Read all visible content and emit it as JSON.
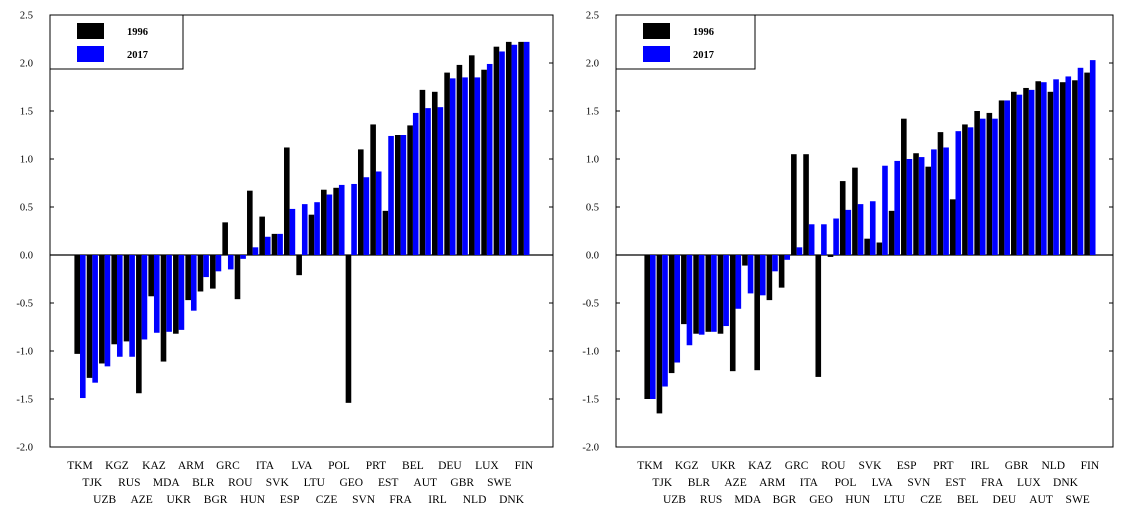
{
  "chart_data": [
    {
      "type": "bar",
      "ylim": [
        -2.0,
        2.5
      ],
      "yticks": [
        "2.5",
        "2.0",
        "1.5",
        "1.0",
        "0.5",
        "0.0",
        "-0.5",
        "-1.0",
        "-1.5",
        "-2.0"
      ],
      "ytick_values": [
        2.5,
        2.0,
        1.5,
        1.0,
        0.5,
        0.0,
        -0.5,
        -1.0,
        -1.5,
        -2.0
      ],
      "legend_position": "top-left",
      "categories": [
        "TKM",
        "TJK",
        "UZB",
        "KGZ",
        "RUS",
        "AZE",
        "KAZ",
        "MDA",
        "UKR",
        "ARM",
        "BLR",
        "BGR",
        "GRC",
        "ROU",
        "HUN",
        "ITA",
        "SVK",
        "ESP",
        "LVA",
        "LTU",
        "CZE",
        "POL",
        "GEO",
        "SVN",
        "PRT",
        "EST",
        "FRA",
        "BEL",
        "AUT",
        "IRL",
        "DEU",
        "GBR",
        "NLD",
        "LUX",
        "SWE",
        "DNK",
        "FIN"
      ],
      "series": [
        {
          "name": "1996",
          "color": "#000000",
          "values": [
            -1.03,
            -1.28,
            -1.13,
            -0.93,
            -0.9,
            -1.44,
            -0.43,
            -1.11,
            -0.82,
            -0.47,
            -0.38,
            -0.35,
            0.34,
            -0.46,
            0.67,
            0.4,
            0.22,
            1.12,
            -0.21,
            0.42,
            0.68,
            0.7,
            -1.54,
            1.1,
            1.36,
            0.46,
            1.25,
            1.35,
            1.72,
            1.7,
            1.9,
            1.98,
            2.08,
            1.93,
            2.17,
            2.22,
            2.22
          ]
        },
        {
          "name": "2017",
          "color": "#0000ff",
          "values": [
            -1.49,
            -1.33,
            -1.16,
            -1.06,
            -1.06,
            -0.88,
            -0.81,
            -0.8,
            -0.78,
            -0.58,
            -0.23,
            -0.17,
            -0.15,
            -0.04,
            0.08,
            0.19,
            0.22,
            0.48,
            0.53,
            0.55,
            0.63,
            0.73,
            0.74,
            0.81,
            0.87,
            1.24,
            1.25,
            1.48,
            1.53,
            1.54,
            1.84,
            1.85,
            1.85,
            1.99,
            2.12,
            2.19,
            2.22
          ]
        }
      ],
      "xtick_rows": [
        [
          "TKM",
          "KGZ",
          "KAZ",
          "ARM",
          "GRC",
          "ITA",
          "LVA",
          "POL",
          "PRT",
          "BEL",
          "DEU",
          "LUX",
          "FIN"
        ],
        [
          "TJK",
          "RUS",
          "MDA",
          "BLR",
          "ROU",
          "SVK",
          "LTU",
          "GEO",
          "EST",
          "AUT",
          "GBR",
          "SWE"
        ],
        [
          "UZB",
          "AZE",
          "UKR",
          "BGR",
          "HUN",
          "ESP",
          "CZE",
          "SVN",
          "FRA",
          "IRL",
          "NLD",
          "DNK"
        ]
      ]
    },
    {
      "type": "bar",
      "ylim": [
        -2.0,
        2.5
      ],
      "yticks": [
        "2.5",
        "2.0",
        "1.5",
        "1.0",
        "0.5",
        "0.0",
        "-0.5",
        "-1.0",
        "-1.5",
        "-2.0"
      ],
      "ytick_values": [
        2.5,
        2.0,
        1.5,
        1.0,
        0.5,
        0.0,
        -0.5,
        -1.0,
        -1.5,
        -2.0
      ],
      "legend_position": "top-left",
      "categories": [
        "TKM",
        "TJK",
        "UZB",
        "KGZ",
        "BLR",
        "RUS",
        "UKR",
        "AZE",
        "MDA",
        "KAZ",
        "ARM",
        "BGR",
        "GRC",
        "ITA",
        "GEO",
        "ROU",
        "POL",
        "HUN",
        "SVK",
        "LVA",
        "LTU",
        "ESP",
        "SVN",
        "CZE",
        "PRT",
        "EST",
        "BEL",
        "IRL",
        "FRA",
        "DEU",
        "GBR",
        "LUX",
        "AUT",
        "NLD",
        "DNK",
        "SWE",
        "FIN"
      ],
      "series": [
        {
          "name": "1996",
          "color": "#000000",
          "values": [
            -1.5,
            -1.65,
            -1.23,
            -0.72,
            -0.82,
            -0.8,
            -0.82,
            -1.21,
            -0.11,
            -1.2,
            -0.47,
            -0.34,
            1.05,
            1.05,
            -1.27,
            -0.02,
            0.77,
            0.91,
            0.17,
            0.13,
            0.46,
            1.42,
            1.06,
            0.92,
            1.28,
            0.58,
            1.36,
            1.5,
            1.48,
            1.61,
            1.7,
            1.74,
            1.81,
            1.7,
            1.8,
            1.82,
            1.9
          ]
        },
        {
          "name": "2017",
          "color": "#0000ff",
          "values": [
            -1.5,
            -1.37,
            -1.12,
            -0.94,
            -0.83,
            -0.8,
            -0.74,
            -0.56,
            -0.4,
            -0.42,
            -0.17,
            -0.05,
            0.08,
            0.32,
            0.32,
            0.38,
            0.47,
            0.53,
            0.56,
            0.93,
            0.98,
            1.0,
            1.02,
            1.1,
            1.12,
            1.29,
            1.33,
            1.42,
            1.42,
            1.61,
            1.67,
            1.72,
            1.8,
            1.83,
            1.86,
            1.95,
            2.03
          ]
        }
      ],
      "xtick_rows": [
        [
          "TKM",
          "KGZ",
          "UKR",
          "KAZ",
          "GRC",
          "ROU",
          "SVK",
          "ESP",
          "PRT",
          "IRL",
          "GBR",
          "NLD",
          "FIN"
        ],
        [
          "TJK",
          "BLR",
          "AZE",
          "ARM",
          "ITA",
          "POL",
          "LVA",
          "SVN",
          "EST",
          "FRA",
          "LUX",
          "DNK"
        ],
        [
          "UZB",
          "RUS",
          "MDA",
          "BGR",
          "GEO",
          "HUN",
          "LTU",
          "CZE",
          "BEL",
          "DEU",
          "AUT",
          "SWE"
        ]
      ]
    }
  ]
}
